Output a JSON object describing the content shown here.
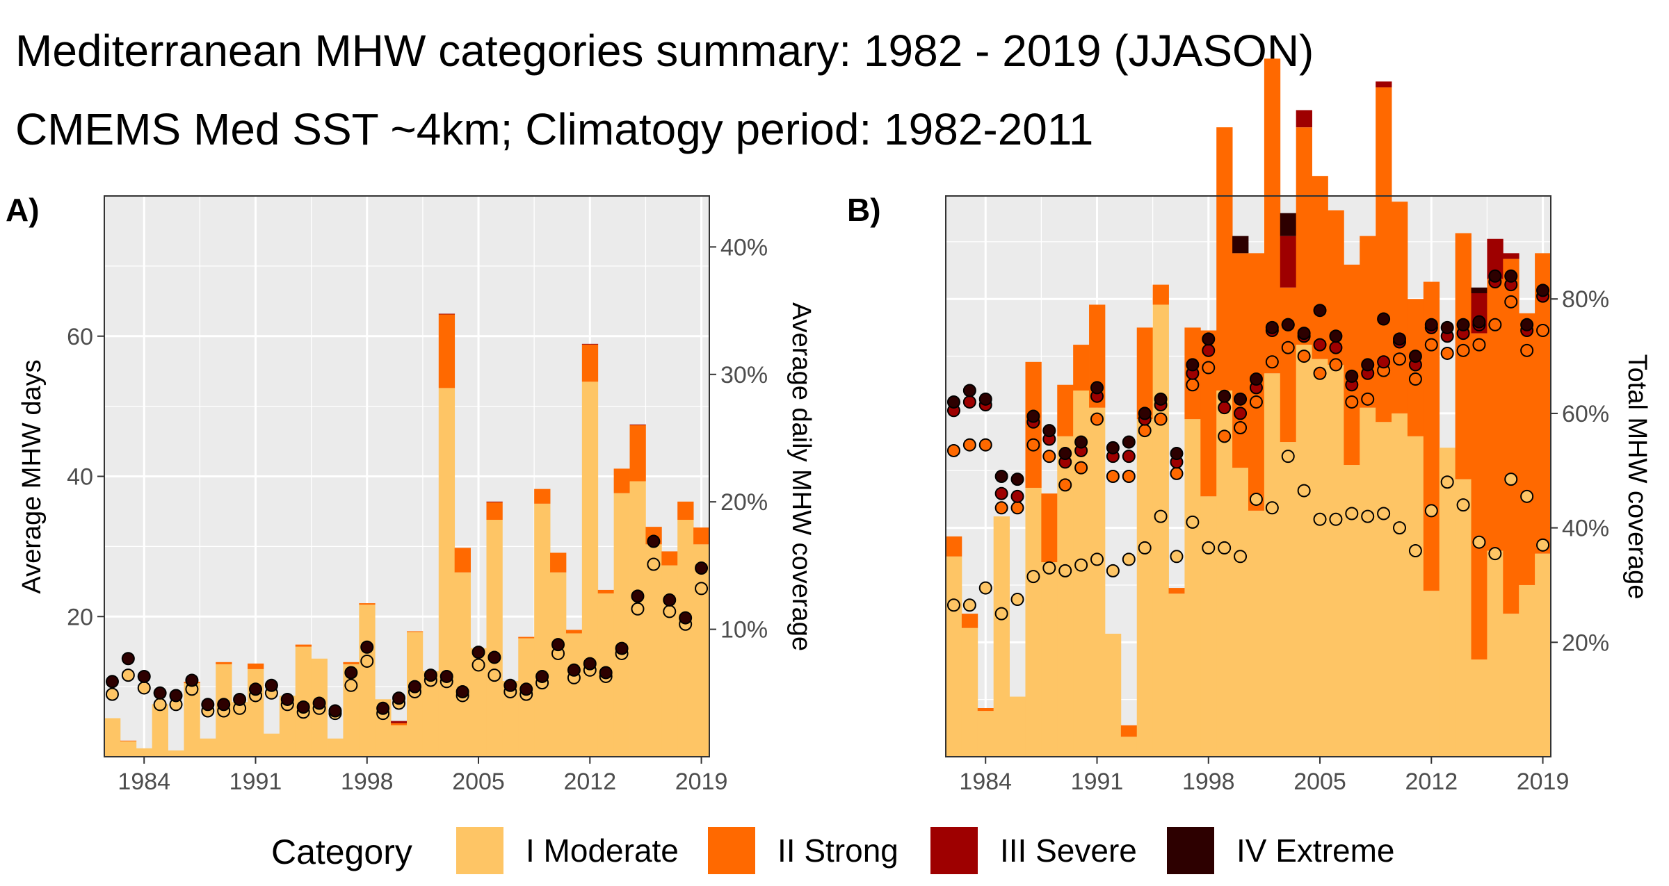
{
  "title": "Mediterranean MHW categories summary: 1982 - 2019 (JJASON)",
  "subtitle": "CMEMS Med SST ~4km; Climatogy period: 1982-2011",
  "legend": {
    "title": "Category",
    "items": [
      {
        "label": "I Moderate",
        "color": "#fec565"
      },
      {
        "label": "II Strong",
        "color": "#ff6900"
      },
      {
        "label": "III Severe",
        "color": "#9e0000"
      },
      {
        "label": "IV Extreme",
        "color": "#2d0000"
      }
    ]
  },
  "panels": {
    "a": {
      "label": "A)",
      "ylabel": "Average MHW days",
      "y2label": "Average daily MHW coverage"
    },
    "b": {
      "label": "B)",
      "y2label": "Total MHW coverage"
    }
  },
  "chart_data": [
    {
      "type": "bar",
      "panel": "A)",
      "ylabel": "Average MHW days",
      "y2label": "Average daily MHW coverage",
      "x": [
        1982,
        1983,
        1984,
        1985,
        1986,
        1987,
        1988,
        1989,
        1990,
        1991,
        1992,
        1993,
        1994,
        1995,
        1996,
        1997,
        1998,
        1999,
        2000,
        2001,
        2002,
        2003,
        2004,
        2005,
        2006,
        2007,
        2008,
        2009,
        2010,
        2011,
        2012,
        2013,
        2014,
        2015,
        2016,
        2017,
        2018,
        2019
      ],
      "x_ticks": [
        1984,
        1991,
        1998,
        2005,
        2012,
        2019
      ],
      "ylim": [
        0,
        80
      ],
      "y_ticks": [
        20,
        40,
        60
      ],
      "y2lim": [
        0,
        44
      ],
      "y2_ticks": [
        "10%",
        "20%",
        "30%",
        "40%"
      ],
      "series": [
        {
          "name": "I Moderate",
          "values": [
            5.5,
            2.2,
            1.2,
            7.5,
            0.9,
            10.5,
            2.6,
            13.2,
            7.8,
            12.5,
            3.3,
            8.7,
            15.7,
            14,
            2.6,
            13.2,
            21.7,
            8.2,
            4.5,
            17.8,
            12.2,
            52.6,
            26.3,
            15.5,
            33.8,
            10.8,
            16.9,
            36.1,
            26.3,
            17.6,
            53.5,
            23.3,
            37.6,
            39.3,
            30.3,
            27.3,
            33.8,
            30.3
          ]
        },
        {
          "name": "II Strong",
          "values": [
            0,
            0.1,
            0,
            0,
            0,
            0.2,
            0,
            0.3,
            0,
            0.8,
            0,
            0,
            0.3,
            0,
            0,
            0.3,
            0.2,
            0,
            0.3,
            0.1,
            0,
            10.5,
            3.5,
            0,
            2.5,
            0,
            0.2,
            2.1,
            2.8,
            0.5,
            5.3,
            0.5,
            3.5,
            8,
            2.5,
            2,
            2.6,
            2.4
          ]
        },
        {
          "name": "III Severe",
          "values": [
            0,
            0,
            0,
            0,
            0,
            0,
            0,
            0,
            0,
            0,
            0,
            0,
            0,
            0,
            0,
            0,
            0,
            0,
            0.3,
            0,
            0,
            0.1,
            0,
            0,
            0.1,
            0,
            0,
            0,
            0,
            0,
            0.1,
            0,
            0,
            0.1,
            0,
            0,
            0,
            0
          ]
        },
        {
          "name": "IV Extreme",
          "values": [
            0,
            0,
            0,
            0,
            0,
            0,
            0,
            0,
            0,
            0,
            0,
            0,
            0,
            0,
            0,
            0,
            0,
            0,
            0,
            0,
            0,
            0,
            0,
            0,
            0,
            0,
            0,
            0,
            0,
            0,
            0,
            0,
            0,
            0,
            0,
            0,
            0,
            0
          ]
        }
      ],
      "points_moderate_pct": [
        4.9,
        6.4,
        5.4,
        4.1,
        4.1,
        5.3,
        3.6,
        3.6,
        3.8,
        4.8,
        5,
        4.1,
        3.5,
        3.8,
        3.4,
        5.6,
        7.5,
        3.4,
        4.2,
        5.1,
        6,
        5.9,
        4.8,
        7.2,
        6.4,
        5.1,
        4.9,
        5.8,
        8.1,
        6.2,
        6.8,
        6.3,
        8.1,
        11.6,
        15.1,
        11.4,
        10.4,
        13.2
      ],
      "points_total_pct": [
        5.9,
        7.7,
        6.3,
        5,
        4.8,
        6,
        4.1,
        4.1,
        4.5,
        5.3,
        5.6,
        4.5,
        3.9,
        4.2,
        3.6,
        6.6,
        8.6,
        3.8,
        4.6,
        5.5,
        6.4,
        6.3,
        5.1,
        8.2,
        7.8,
        5.6,
        5.3,
        6.3,
        8.8,
        6.8,
        7.3,
        6.6,
        8.5,
        12.6,
        16.9,
        12.3,
        10.9,
        14.8
      ]
    },
    {
      "type": "bar",
      "panel": "B)",
      "y2label": "Total MHW coverage",
      "x": [
        1982,
        1983,
        1984,
        1985,
        1986,
        1987,
        1988,
        1989,
        1990,
        1991,
        1992,
        1993,
        1994,
        1995,
        1996,
        1997,
        1998,
        1999,
        2000,
        2001,
        2002,
        2003,
        2004,
        2005,
        2006,
        2007,
        2008,
        2009,
        2010,
        2011,
        2012,
        2013,
        2014,
        2015,
        2016,
        2017,
        2018,
        2019
      ],
      "x_ticks": [
        1984,
        1991,
        1998,
        2005,
        2012,
        2019
      ],
      "ylim_pct": [
        0,
        98
      ],
      "y2_ticks": [
        "20%",
        "40%",
        "60%",
        "80%"
      ],
      "series": [
        {
          "name": "I Moderate",
          "values": [
            35,
            22.5,
            8,
            42,
            10.5,
            47,
            34,
            56,
            64,
            61,
            21.5,
            3.5,
            59,
            79,
            28.5,
            59,
            45.5,
            64,
            50.5,
            43,
            67,
            55,
            72,
            69.5,
            68.5,
            51,
            61,
            58.5,
            60,
            56,
            29,
            54,
            48.5,
            17,
            36,
            25,
            30,
            35.5
          ]
        },
        {
          "name": "II Strong",
          "values": [
            3.5,
            2.5,
            0.5,
            0,
            0,
            22,
            12,
            9,
            8,
            18,
            0,
            2,
            16,
            3.5,
            1,
            16,
            29,
            46,
            37.5,
            45,
            55,
            27,
            38,
            32,
            27,
            35,
            30,
            58.5,
            37,
            24,
            54,
            0,
            43,
            57,
            47.5,
            62,
            47.5,
            52.5
          ]
        },
        {
          "name": "III Severe",
          "values": [
            0,
            0,
            0,
            0,
            0,
            0,
            0,
            0,
            0,
            0,
            0,
            0,
            0,
            0,
            0,
            0,
            0,
            0,
            0,
            0,
            0,
            9,
            3,
            0,
            0,
            0,
            0,
            1,
            0,
            0,
            0,
            0,
            0,
            7,
            7,
            1,
            0,
            0
          ]
        },
        {
          "name": "IV Extreme",
          "values": [
            0,
            0,
            0,
            0,
            0,
            0,
            0,
            0,
            0,
            0,
            0,
            0,
            0,
            0,
            0,
            0,
            0,
            0,
            3,
            0,
            0,
            4,
            0,
            0,
            0,
            0,
            0,
            0,
            0,
            0,
            0,
            0,
            0,
            1,
            0,
            0,
            0,
            0
          ]
        }
      ],
      "points_moderate_pct": [
        26.5,
        26.5,
        29.5,
        25,
        27.5,
        31.5,
        33,
        32.5,
        33.5,
        34.5,
        32.5,
        34.5,
        36.5,
        42,
        35,
        41,
        36.5,
        36.5,
        35,
        45,
        43.5,
        52.5,
        46.5,
        41.5,
        41.5,
        42.5,
        42,
        42.5,
        40,
        36,
        43,
        48,
        44,
        37.5,
        35.5,
        48.5,
        45.5,
        37
      ],
      "points_strong_pct": [
        53.5,
        54.5,
        54.5,
        43.5,
        43.5,
        54.5,
        52.5,
        47.5,
        50.5,
        59,
        49,
        49,
        57,
        59,
        49.5,
        65,
        68,
        56,
        57.5,
        62,
        69,
        71.5,
        70,
        67,
        68.5,
        62,
        62.5,
        67.5,
        69.5,
        66,
        72,
        70.5,
        71,
        72,
        75.5,
        79.5,
        71,
        74.5
      ],
      "points_severe_pct": [
        60.5,
        62,
        61.5,
        46,
        45.5,
        58.5,
        55.5,
        51.5,
        53.5,
        63,
        52.5,
        52.5,
        59,
        61.5,
        51.5,
        67,
        71,
        61,
        60,
        64.5,
        74.5,
        75.5,
        73.5,
        72,
        71.5,
        65,
        67,
        69,
        72.5,
        68.5,
        75,
        73.5,
        74,
        75.5,
        83,
        82.5,
        74.5,
        80.5
      ],
      "points_extreme_pct": [
        62,
        64,
        62.5,
        49,
        48.5,
        59.5,
        57,
        53,
        55,
        64.5,
        54,
        55,
        60,
        62.5,
        53,
        68.5,
        73,
        63,
        62.5,
        66,
        75,
        75.5,
        74,
        78,
        73.5,
        66.5,
        68.5,
        76.5,
        73,
        70,
        75.5,
        75,
        75.5,
        76,
        84,
        84,
        75.5,
        81.5
      ]
    }
  ]
}
